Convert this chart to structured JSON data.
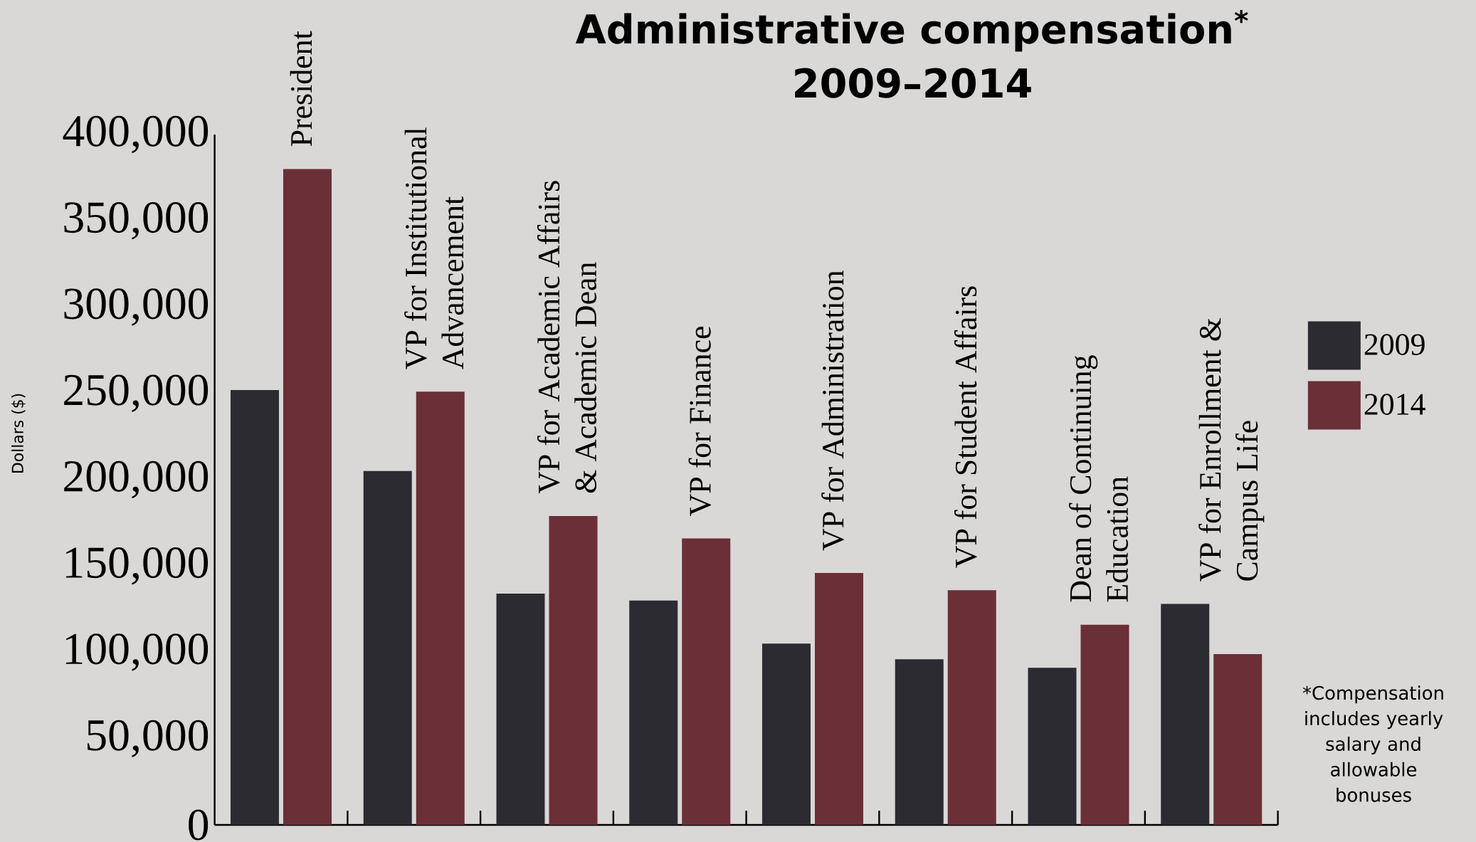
{
  "chart_data": {
    "type": "bar",
    "title": "Administrative compensation$^{*}$",
    "subtitle": "2009–2014",
    "ylabel": "Dollars ($)",
    "categories": [
      "President",
      "VP for Institutional Advancement",
      "VP for Academic Affairs & Academic Dean",
      "VP for Finance",
      "VP for Administration",
      "VP for Student Affairs",
      "Dean of Continuing Education",
      "VP for Enrollment & Campus Life"
    ],
    "series": [
      {
        "name": "2009",
        "color": "#2c2b31",
        "values": [
          252000,
          205000,
          134000,
          130000,
          105000,
          96000,
          91000,
          128000
        ]
      },
      {
        "name": "2014",
        "color": "#6a2f37",
        "values": [
          380000,
          251000,
          179000,
          166000,
          146000,
          136000,
          116000,
          99000
        ]
      }
    ],
    "ylim": [
      0,
      400000
    ],
    "yticks": [
      0,
      {
        "value": 50000,
        "label": "50,000"
      },
      {
        "value": 100000,
        "label": "100,000"
      },
      {
        "value": 150000,
        "label": "150,000"
      },
      {
        "value": 200000,
        "label": "200,000"
      },
      {
        "value": 250000,
        "label": "250,000"
      },
      {
        "value": 300000,
        "label": "300,000"
      },
      {
        "value": 350000,
        "label": "350,000"
      },
      {
        "value": 400000,
        "label": "400,000"
      }
    ],
    "legend": "right",
    "annotations": [
      "*Compensation includes yearly salary and allowable bonuses"
    ]
  }
}
